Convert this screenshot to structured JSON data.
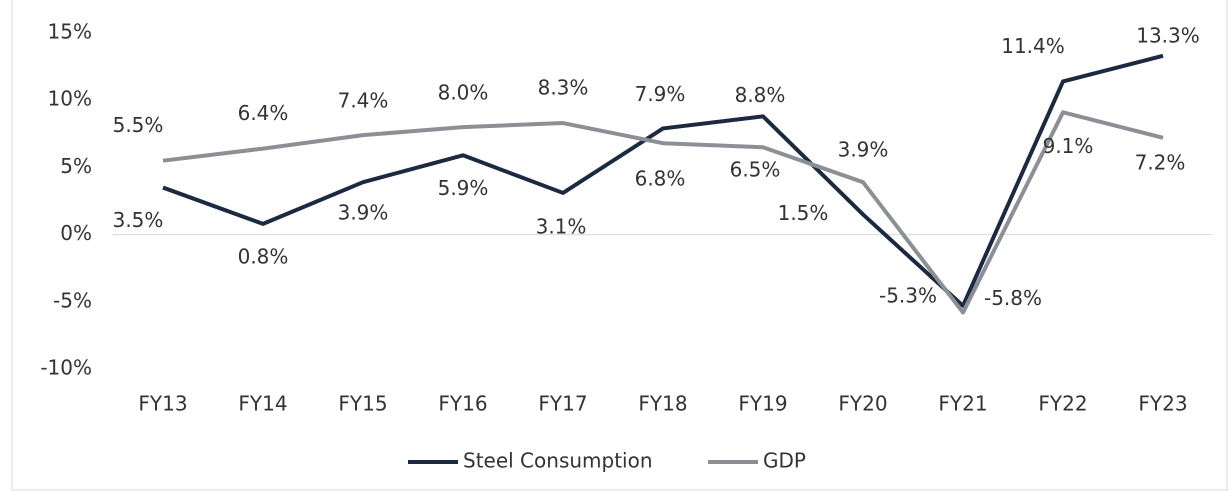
{
  "chart_data": {
    "type": "line",
    "categories": [
      "FY13",
      "FY14",
      "FY15",
      "FY16",
      "FY17",
      "FY18",
      "FY19",
      "FY20",
      "FY21",
      "FY22",
      "FY23"
    ],
    "series": [
      {
        "name": "Steel Consumption",
        "color": "#1b2a41",
        "values": [
          3.5,
          0.8,
          3.9,
          5.9,
          3.1,
          7.9,
          8.8,
          1.5,
          -5.3,
          11.4,
          13.3
        ],
        "value_labels": [
          "3.5%",
          "0.8%",
          "3.9%",
          "5.9%",
          "3.1%",
          "7.9%",
          "8.8%",
          "1.5%",
          "-5.3%",
          "11.4%",
          "13.3%"
        ]
      },
      {
        "name": "GDP",
        "color": "#8c8f96",
        "values": [
          5.5,
          6.4,
          7.4,
          8.0,
          8.3,
          6.8,
          6.5,
          3.9,
          -5.8,
          9.1,
          7.2
        ],
        "value_labels": [
          "5.5%",
          "6.4%",
          "7.4%",
          "8.0%",
          "8.3%",
          "6.8%",
          "6.5%",
          "3.9%",
          "-5.8%",
          "9.1%",
          "7.2%"
        ]
      }
    ],
    "ylim": [
      -10,
      15
    ],
    "yticks": [
      {
        "value": -10,
        "label": "-10%"
      },
      {
        "value": -5,
        "label": "-5%"
      },
      {
        "value": 0,
        "label": "0%"
      },
      {
        "value": 5,
        "label": "5%"
      },
      {
        "value": 10,
        "label": "10%"
      },
      {
        "value": 15,
        "label": "15%"
      }
    ],
    "legend": "bottom"
  }
}
